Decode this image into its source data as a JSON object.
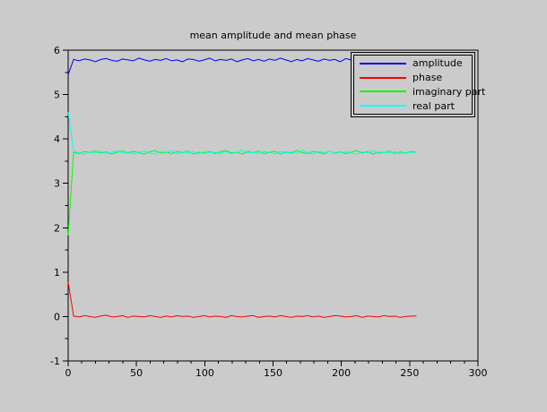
{
  "chart_data": {
    "type": "line",
    "title": "mean amplitude and mean phase",
    "xlabel": "",
    "ylabel": "",
    "xlim": [
      0,
      300
    ],
    "ylim": [
      -1,
      6
    ],
    "x_major_ticks": [
      0,
      50,
      100,
      150,
      200,
      250,
      300
    ],
    "x_minor_tick_step": 10,
    "y_major_ticks": [
      -1,
      0,
      1,
      2,
      3,
      4,
      5,
      6
    ],
    "y_minor_tick_step": 0.5,
    "grid": false,
    "legend_position": "top-right-inside",
    "background_color": "#cbcbcb",
    "axis_color": "#000000",
    "x_start": 0,
    "x_end": 255,
    "legend": [
      "amplitude",
      "phase",
      "imaginary part",
      "real part"
    ],
    "series": [
      {
        "name": "amplitude",
        "color": "#0000ff",
        "values": [
          5.45,
          5.79,
          5.76,
          5.8,
          5.78,
          5.74,
          5.79,
          5.81,
          5.77,
          5.75,
          5.8,
          5.78,
          5.76,
          5.82,
          5.78,
          5.75,
          5.79,
          5.77,
          5.81,
          5.76,
          5.78,
          5.74,
          5.8,
          5.79,
          5.75,
          5.78,
          5.82,
          5.76,
          5.79,
          5.77,
          5.8,
          5.74,
          5.78,
          5.81,
          5.76,
          5.79,
          5.75,
          5.8,
          5.77,
          5.82,
          5.78,
          5.74,
          5.79,
          5.76,
          5.81,
          5.78,
          5.75,
          5.8,
          5.77,
          5.79,
          5.74,
          5.81,
          5.78,
          5.76,
          5.8,
          5.75,
          5.79,
          5.77,
          5.82,
          5.76,
          5.8,
          5.78,
          5.74,
          5.79,
          5.77
        ]
      },
      {
        "name": "phase",
        "color": "#ff0000",
        "values": [
          0.78,
          0.01,
          -0.01,
          0.02,
          0,
          -0.02,
          0.01,
          0.03,
          -0.01,
          0,
          0.02,
          -0.02,
          0.01,
          0,
          -0.01,
          0.02,
          0,
          -0.02,
          0.01,
          -0.01,
          0.02,
          0,
          0.01,
          -0.02,
          0,
          0.02,
          -0.01,
          0.01,
          0,
          -0.02,
          0.02,
          0,
          -0.01,
          0.01,
          0.02,
          -0.02,
          0,
          0.01,
          -0.01,
          0.02,
          0,
          -0.02,
          0.01,
          0,
          0.02,
          -0.01,
          0.01,
          -0.02,
          0,
          0.02,
          0.01,
          -0.01,
          0,
          0.02,
          -0.02,
          0.01,
          0,
          -0.01,
          0.02,
          0,
          0.01,
          -0.02,
          0,
          0.01,
          0.01
        ]
      },
      {
        "name": "imaginary part",
        "color": "#00ff00",
        "values": [
          1.83,
          3.7,
          3.67,
          3.72,
          3.69,
          3.73,
          3.68,
          3.71,
          3.66,
          3.7,
          3.73,
          3.68,
          3.72,
          3.69,
          3.66,
          3.71,
          3.74,
          3.68,
          3.7,
          3.67,
          3.72,
          3.69,
          3.73,
          3.66,
          3.7,
          3.68,
          3.72,
          3.67,
          3.71,
          3.74,
          3.68,
          3.7,
          3.66,
          3.72,
          3.69,
          3.73,
          3.67,
          3.7,
          3.72,
          3.66,
          3.71,
          3.68,
          3.74,
          3.69,
          3.67,
          3.72,
          3.7,
          3.66,
          3.73,
          3.68,
          3.71,
          3.67,
          3.7,
          3.74,
          3.68,
          3.72,
          3.66,
          3.7,
          3.69,
          3.73,
          3.67,
          3.71,
          3.68,
          3.72,
          3.7
        ]
      },
      {
        "name": "real part",
        "color": "#00ffff",
        "values": [
          4.6,
          3.72,
          3.69,
          3.66,
          3.71,
          3.68,
          3.73,
          3.67,
          3.7,
          3.74,
          3.68,
          3.71,
          3.66,
          3.7,
          3.73,
          3.68,
          3.66,
          3.72,
          3.69,
          3.74,
          3.67,
          3.71,
          3.68,
          3.72,
          3.66,
          3.73,
          3.69,
          3.7,
          3.67,
          3.72,
          3.66,
          3.71,
          3.74,
          3.68,
          3.7,
          3.67,
          3.73,
          3.69,
          3.66,
          3.72,
          3.68,
          3.71,
          3.67,
          3.74,
          3.7,
          3.66,
          3.72,
          3.69,
          3.73,
          3.67,
          3.7,
          3.72,
          3.68,
          3.66,
          3.71,
          3.69,
          3.74,
          3.67,
          3.7,
          3.68,
          3.72,
          3.66,
          3.7,
          3.69,
          3.71
        ]
      }
    ]
  }
}
